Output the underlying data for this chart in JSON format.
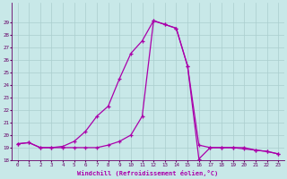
{
  "xlabel": "Windchill (Refroidissement éolien,°C)",
  "hours": [
    0,
    1,
    2,
    3,
    4,
    5,
    6,
    7,
    8,
    9,
    10,
    11,
    12,
    13,
    14,
    15,
    16,
    17,
    18,
    19,
    20,
    21,
    22,
    23
  ],
  "temp": [
    19.3,
    19.4,
    19.0,
    19.0,
    19.1,
    19.5,
    20.3,
    21.5,
    22.3,
    24.5,
    26.5,
    27.5,
    29.1,
    28.8,
    28.5,
    25.5,
    19.2,
    19.0,
    19.0,
    19.0,
    19.0,
    18.8,
    18.7,
    18.5
  ],
  "windchill": [
    19.3,
    19.4,
    19.0,
    19.0,
    19.0,
    19.0,
    19.0,
    19.0,
    19.2,
    19.5,
    20.0,
    21.5,
    29.1,
    28.8,
    28.5,
    25.5,
    18.1,
    19.0,
    19.0,
    19.0,
    18.9,
    18.8,
    18.7,
    18.5
  ],
  "line_color": "#aa00aa",
  "bg_color": "#c8e8e8",
  "grid_color": "#aacece",
  "ylim_min": 18,
  "ylim_max": 30,
  "yticks": [
    18,
    19,
    20,
    21,
    22,
    23,
    24,
    25,
    26,
    27,
    28,
    29
  ],
  "xlim_min": -0.5,
  "xlim_max": 23.5,
  "xlabel_fontsize": 5.0,
  "tick_fontsize": 4.2
}
